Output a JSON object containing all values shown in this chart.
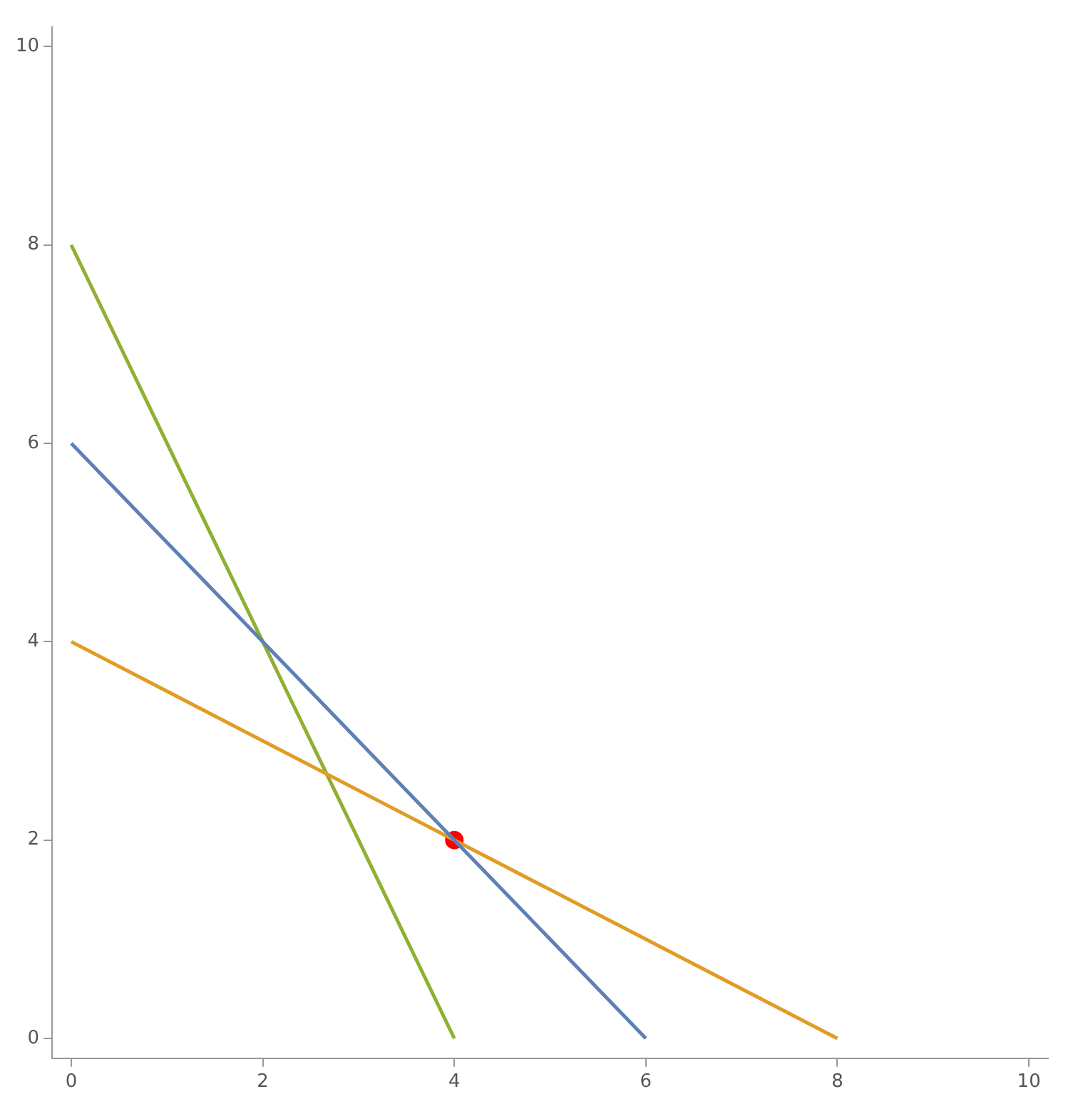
{
  "chart_data": {
    "type": "line",
    "xlim": [
      -0.2,
      10.2
    ],
    "ylim": [
      -0.2,
      10.2
    ],
    "xticks": [
      0,
      2,
      4,
      6,
      8,
      10
    ],
    "yticks": [
      0,
      2,
      4,
      6,
      8,
      10
    ],
    "grid": false,
    "legend": false,
    "marker": "none",
    "line_style": "solid",
    "series": [
      {
        "color": "#5e81b5",
        "x": [
          0,
          6
        ],
        "values": [
          6,
          0
        ]
      },
      {
        "color": "#e19c24",
        "x": [
          0,
          8
        ],
        "values": [
          4,
          0
        ]
      },
      {
        "color": "#8fb032",
        "x": [
          0,
          4
        ],
        "values": [
          8,
          0
        ]
      },
      {
        "type": "scatter",
        "marker": "circle",
        "color": "#ff0000",
        "x": [
          4
        ],
        "values": [
          2
        ]
      }
    ]
  }
}
